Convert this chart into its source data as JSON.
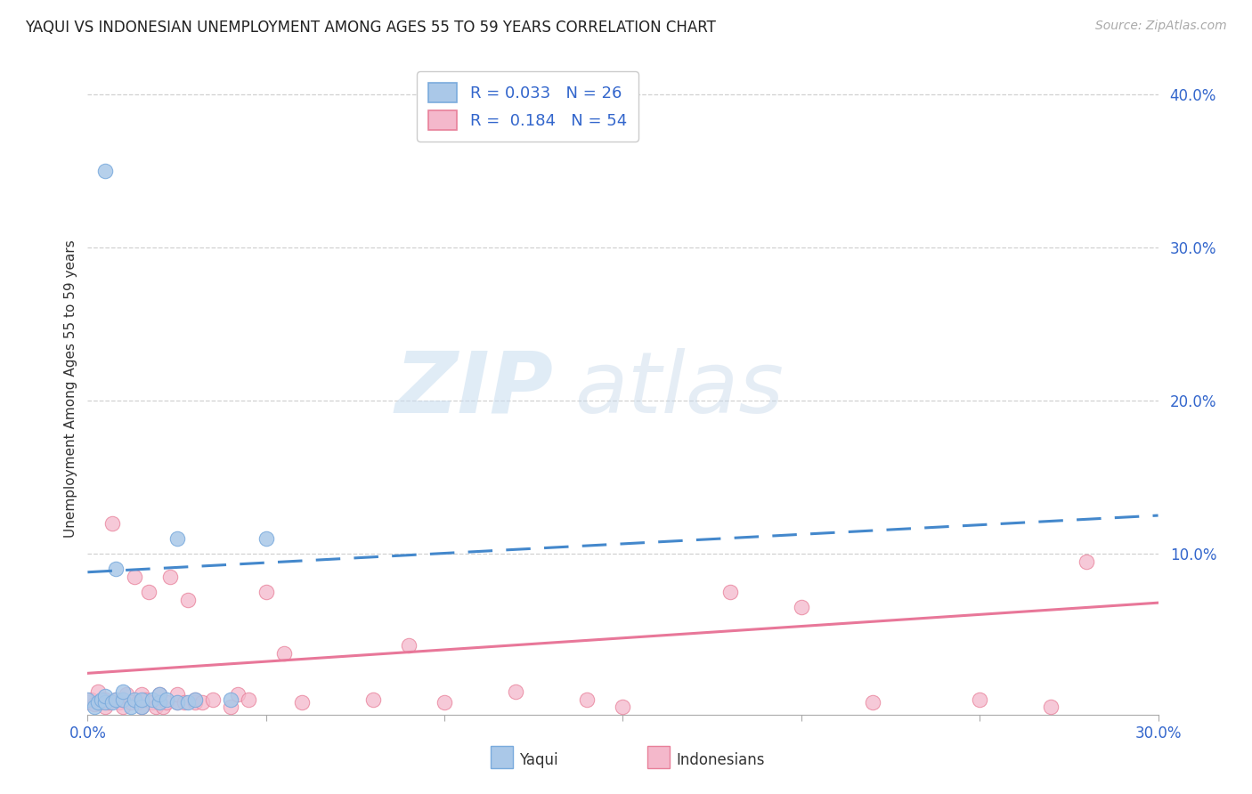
{
  "title": "YAQUI VS INDONESIAN UNEMPLOYMENT AMONG AGES 55 TO 59 YEARS CORRELATION CHART",
  "source": "Source: ZipAtlas.com",
  "ylabel": "Unemployment Among Ages 55 to 59 years",
  "xlim": [
    0.0,
    0.3
  ],
  "ylim": [
    -0.005,
    0.42
  ],
  "yticks": [
    0.1,
    0.2,
    0.3,
    0.4
  ],
  "ytick_labels": [
    "10.0%",
    "20.0%",
    "30.0%",
    "40.0%"
  ],
  "xtick_show": [
    0.0,
    0.3
  ],
  "xtick_show_labels": [
    "0.0%",
    "30.0%"
  ],
  "xtick_minor": [
    0.05,
    0.1,
    0.15,
    0.2,
    0.25
  ],
  "grid_color": "#cccccc",
  "background_color": "#ffffff",
  "yaqui_color": "#aac8e8",
  "yaqui_edge_color": "#7aabdd",
  "indonesian_color": "#f4b8cb",
  "indonesian_edge_color": "#e8809a",
  "yaqui_line_color": "#4488cc",
  "yaqui_line_dash": true,
  "indonesian_line_color": "#e87799",
  "R_yaqui": 0.033,
  "N_yaqui": 26,
  "R_indonesian": 0.184,
  "N_indonesian": 54,
  "legend_text_color": "#3366cc",
  "yaqui_trend_x0": 0.0,
  "yaqui_trend_y0": 0.088,
  "yaqui_trend_x1": 0.3,
  "yaqui_trend_y1": 0.125,
  "indo_trend_x0": 0.0,
  "indo_trend_y0": 0.022,
  "indo_trend_x1": 0.3,
  "indo_trend_y1": 0.068,
  "yaqui_scatter_x": [
    0.0,
    0.002,
    0.003,
    0.004,
    0.005,
    0.005,
    0.007,
    0.008,
    0.008,
    0.01,
    0.01,
    0.012,
    0.013,
    0.015,
    0.015,
    0.018,
    0.02,
    0.02,
    0.022,
    0.025,
    0.025,
    0.028,
    0.03,
    0.04,
    0.05,
    0.005
  ],
  "yaqui_scatter_y": [
    0.005,
    0.0,
    0.003,
    0.005,
    0.003,
    0.007,
    0.003,
    0.09,
    0.005,
    0.005,
    0.01,
    0.0,
    0.005,
    0.0,
    0.005,
    0.005,
    0.003,
    0.008,
    0.005,
    0.003,
    0.11,
    0.003,
    0.005,
    0.005,
    0.11,
    0.35
  ],
  "indonesian_scatter_x": [
    0.0,
    0.001,
    0.002,
    0.003,
    0.004,
    0.005,
    0.005,
    0.006,
    0.007,
    0.008,
    0.009,
    0.01,
    0.01,
    0.011,
    0.012,
    0.013,
    0.014,
    0.015,
    0.015,
    0.016,
    0.017,
    0.018,
    0.019,
    0.02,
    0.02,
    0.021,
    0.022,
    0.023,
    0.025,
    0.025,
    0.027,
    0.028,
    0.03,
    0.03,
    0.032,
    0.035,
    0.04,
    0.042,
    0.045,
    0.05,
    0.055,
    0.06,
    0.08,
    0.09,
    0.1,
    0.12,
    0.14,
    0.15,
    0.18,
    0.2,
    0.22,
    0.25,
    0.27,
    0.28
  ],
  "indonesian_scatter_y": [
    0.003,
    0.005,
    0.002,
    0.01,
    0.003,
    0.0,
    0.005,
    0.003,
    0.12,
    0.005,
    0.003,
    0.0,
    0.005,
    0.008,
    0.003,
    0.085,
    0.003,
    0.0,
    0.008,
    0.005,
    0.075,
    0.003,
    0.0,
    0.003,
    0.008,
    0.0,
    0.003,
    0.085,
    0.003,
    0.008,
    0.003,
    0.07,
    0.003,
    0.005,
    0.003,
    0.005,
    0.0,
    0.008,
    0.005,
    0.075,
    0.035,
    0.003,
    0.005,
    0.04,
    0.003,
    0.01,
    0.005,
    0.0,
    0.075,
    0.065,
    0.003,
    0.005,
    0.0,
    0.095
  ]
}
